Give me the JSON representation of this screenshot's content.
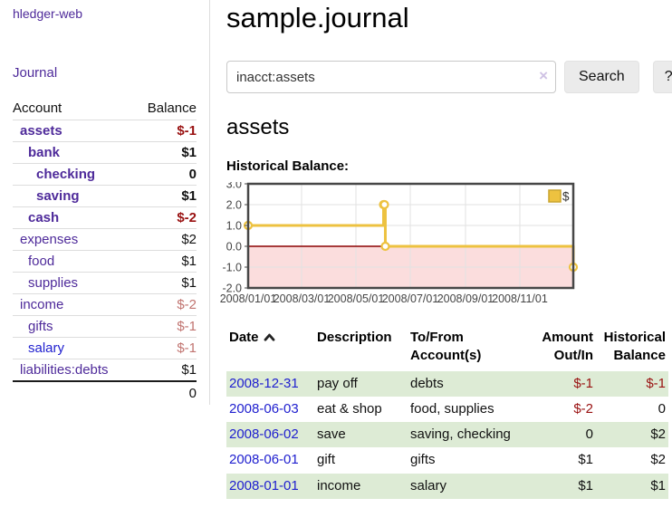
{
  "brand": "hledger-web",
  "nav": {
    "journal": "Journal"
  },
  "sidebar": {
    "headers": {
      "account": "Account",
      "balance": "Balance"
    },
    "accounts": [
      {
        "name": "assets",
        "depth": 1,
        "bold": true,
        "balance": "$-1",
        "balance_class": "negb"
      },
      {
        "name": "bank",
        "depth": 2,
        "bold": true,
        "balance": "$1",
        "balance_class": "b"
      },
      {
        "name": "checking",
        "depth": 3,
        "bold": true,
        "balance": "0",
        "balance_class": "b"
      },
      {
        "name": "saving",
        "depth": 3,
        "bold": true,
        "balance": "$1",
        "balance_class": "b"
      },
      {
        "name": "cash",
        "depth": 2,
        "bold": true,
        "balance": "$-2",
        "balance_class": "negb"
      },
      {
        "name": "expenses",
        "depth": 1,
        "bold": false,
        "balance": "$2",
        "balance_class": ""
      },
      {
        "name": "food",
        "depth": 2,
        "bold": false,
        "balance": "$1",
        "balance_class": ""
      },
      {
        "name": "supplies",
        "depth": 2,
        "bold": false,
        "balance": "$1",
        "balance_class": ""
      },
      {
        "name": "income",
        "depth": 1,
        "bold": false,
        "balance": "$-2",
        "balance_class": "neg"
      },
      {
        "name": "gifts",
        "depth": 2,
        "bold": false,
        "balance": "$-1",
        "balance_class": "neg"
      },
      {
        "name": "salary",
        "depth": 2,
        "bold": false,
        "blue": true,
        "balance": "$-1",
        "balance_class": "neg"
      },
      {
        "name": "liabilities:debts",
        "depth": 1,
        "bold": false,
        "balance": "$1",
        "balance_class": ""
      }
    ],
    "total": "0"
  },
  "header": {
    "title": "sample.journal"
  },
  "search": {
    "value": "inacct:assets",
    "clear_icon": "×",
    "button": "Search",
    "help": "?"
  },
  "account_page": {
    "title": "assets",
    "chart_label": "Historical Balance:"
  },
  "chart_data": {
    "type": "line",
    "step": true,
    "title": "Historical Balance:",
    "series": [
      {
        "name": "$",
        "points": [
          [
            "2008-01-01",
            1
          ],
          [
            "2008-06-01",
            2
          ],
          [
            "2008-06-02",
            2
          ],
          [
            "2008-06-03",
            0
          ],
          [
            "2008-12-31",
            -1
          ]
        ]
      }
    ],
    "x_range": [
      "2008-01-01",
      "2008-12-31"
    ],
    "x_ticks": [
      {
        "date": "2008-01-01",
        "label": "2008/01/01"
      },
      {
        "date": "2008-03-01",
        "label": "2008/03/01"
      },
      {
        "date": "2008-05-01",
        "label": "2008/05/01"
      },
      {
        "date": "2008-07-01",
        "label": "2008/07/01"
      },
      {
        "date": "2008-09-01",
        "label": "2008/09/01"
      },
      {
        "date": "2008-11-01",
        "label": "2008/11/01"
      }
    ],
    "y_ticks": [
      3.0,
      2.0,
      1.0,
      0.0,
      -1.0,
      -2.0
    ],
    "ylim": [
      -2.0,
      3.0
    ],
    "legend_position": "top-right",
    "grid": true,
    "colors": {
      "line": "#edc240",
      "marker_fill": "#ffffff",
      "zero_line": "#8b0000",
      "negative_fill": "#fbdddd",
      "grid": "#e2e2e2",
      "border": "#474747",
      "labels": "#444444",
      "legend_box_border": "#c9a42e",
      "legend_text": "#333333"
    }
  },
  "table": {
    "columns": [
      {
        "id": "date",
        "lines": [
          "Date"
        ],
        "sort": "ascending"
      },
      {
        "id": "description",
        "lines": [
          "Description"
        ]
      },
      {
        "id": "accounts",
        "lines": [
          "To/From",
          "Account(s)"
        ]
      },
      {
        "id": "amount",
        "lines": [
          "Amount",
          "Out/In"
        ],
        "align": "right"
      },
      {
        "id": "balance",
        "lines": [
          "Historical",
          "Balance"
        ],
        "align": "right"
      }
    ],
    "rows": [
      {
        "date": "2008-12-31",
        "description": "pay off",
        "accounts": "debts",
        "amount": "$-1",
        "amount_negative": true,
        "balance": "$-1",
        "balance_negative": true
      },
      {
        "date": "2008-06-03",
        "description": "eat & shop",
        "accounts": "food, supplies",
        "amount": "$-2",
        "amount_negative": true,
        "balance": "0",
        "balance_negative": false
      },
      {
        "date": "2008-06-02",
        "description": "save",
        "accounts": "saving, checking",
        "amount": "0",
        "amount_negative": false,
        "balance": "$2",
        "balance_negative": false
      },
      {
        "date": "2008-06-01",
        "description": "gift",
        "accounts": "gifts",
        "amount": "$1",
        "amount_negative": false,
        "balance": "$2",
        "balance_negative": false
      },
      {
        "date": "2008-01-01",
        "description": "income",
        "accounts": "salary",
        "amount": "$1",
        "amount_negative": false,
        "balance": "$1",
        "balance_negative": false
      }
    ]
  },
  "colors": {
    "purple": "#4e2a9a",
    "blue": "#2020cf",
    "negative": "#991111",
    "negative_light": "#c17470",
    "row_green": "#ddebd5",
    "divider": "#dddddd",
    "btn_bg": "#ebebeb"
  }
}
